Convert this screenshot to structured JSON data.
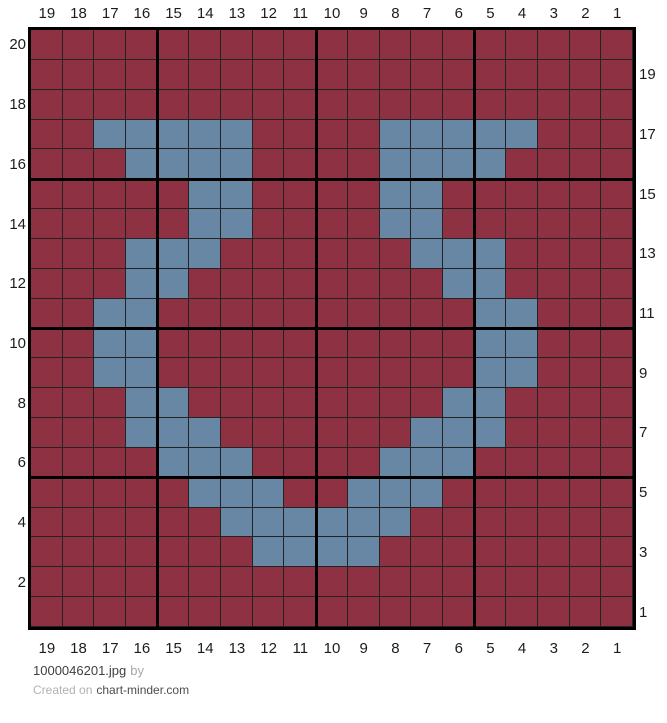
{
  "chart_data": {
    "type": "heatmap",
    "title": "",
    "grid_columns": 19,
    "grid_rows": 20,
    "top_axis": [
      "19",
      "18",
      "17",
      "16",
      "15",
      "14",
      "13",
      "12",
      "11",
      "10",
      "9",
      "8",
      "7",
      "6",
      "5",
      "4",
      "3",
      "2",
      "1"
    ],
    "bottom_axis": [
      "19",
      "18",
      "17",
      "16",
      "15",
      "14",
      "13",
      "12",
      "11",
      "10",
      "9",
      "8",
      "7",
      "6",
      "5",
      "4",
      "3",
      "2",
      "1"
    ],
    "left_axis_even_rows": [
      "20",
      "18",
      "16",
      "14",
      "12",
      "10",
      "8",
      "6",
      "4",
      "2"
    ],
    "right_axis_odd_rows": [
      "19",
      "17",
      "15",
      "13",
      "11",
      "9",
      "7",
      "5",
      "3",
      "1"
    ],
    "colors": {
      "background_stitch": "#8e3143",
      "motif_stitch": "#6887a4",
      "thin_gridline": "#232323",
      "thick_gridline": "#000000"
    },
    "thick_line_group_size": 5,
    "legend_key": {
      ".": "background_stitch",
      "B": "motif_stitch"
    },
    "grid_rows_top_to_bottom": [
      "...................",
      "...................",
      "...................",
      "..BBBBB....BBBBB...",
      "...BBBB....BBBB....",
      ".....BB....BB......",
      ".....BB....BB......",
      "...BBB......BBB....",
      "...BB........BB....",
      "..BB..........BB...",
      "..BB..........BB...",
      "..BB..........BB...",
      "...BB........BB....",
      "...BBB......BBB....",
      "....BBB....BBB.....",
      ".....BBB..BBB......",
      "......BBBBBB.......",
      ".......BBBB........",
      "...................",
      "..................."
    ]
  },
  "footer": {
    "filename": "1000046201.jpg",
    "by_label": "by",
    "created_prefix": "Created on",
    "site": "chart-minder.com"
  }
}
